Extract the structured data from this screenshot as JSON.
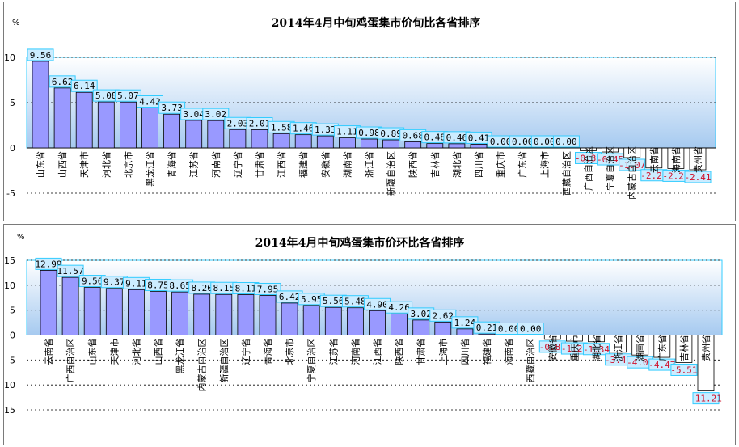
{
  "colors": {
    "bar_pos": "#9999ff",
    "bar_neg": "#ffffff",
    "label_box": "#ccecff",
    "label_border": "#33ccff",
    "neg_text": "#d0102a",
    "plot_gradient_top": "#ffffff",
    "plot_gradient_bottom": "#a6caf0"
  },
  "chart_data": [
    {
      "type": "bar",
      "title": "2014年4月中旬鸡蛋集市价旬比各省排序",
      "unit": "%",
      "ylim": [
        -5,
        10
      ],
      "yticks": [
        "10",
        "5",
        "0",
        "-5"
      ],
      "grid": true,
      "legend": "none",
      "categories": [
        "山东省",
        "山西省",
        "天津市",
        "河北省",
        "北京市",
        "黑龙江省",
        "青海省",
        "江苏省",
        "河南省",
        "辽宁省",
        "甘肃省",
        "江西省",
        "福建省",
        "安徽省",
        "湖南省",
        "浙江省",
        "新疆自治区",
        "陕西省",
        "吉林省",
        "湖北省",
        "四川省",
        "重庆市",
        "广东省",
        "上海市",
        "西藏自治区",
        "广西自治区",
        "宁夏自治区",
        "内蒙古自治区",
        "云南省",
        "海南省",
        "贵州省"
      ],
      "values": [
        9.56,
        6.62,
        6.14,
        5.08,
        5.07,
        4.42,
        3.73,
        3.04,
        3.02,
        2.03,
        2.01,
        1.58,
        1.46,
        1.33,
        1.11,
        0.98,
        0.89,
        0.68,
        0.48,
        0.46,
        0.41,
        0.0,
        0.0,
        0.0,
        0.0,
        -0.31,
        -0.45,
        -1.07,
        -2.21,
        -2.27,
        -2.41
      ],
      "labels": [
        "9.56",
        "6.62",
        "6.14",
        "5.08",
        "5.07",
        "4.42",
        "3.73",
        "3.04",
        "3.02",
        "2.03",
        "2.01",
        "1.58",
        "1.46",
        "1.33",
        "1.11",
        "0.98",
        "0.89",
        "0.68",
        "0.48",
        "0.46",
        "0.41",
        "0.00",
        "0.00",
        "0.00",
        "0.00",
        "-0.31",
        "-0.45",
        "-1.07",
        "-2.21",
        "-2.27",
        "-2.41"
      ]
    },
    {
      "type": "bar",
      "title": "2014年4月中旬鸡蛋集市价环比各省排序",
      "unit": "%",
      "ylim": [
        -15,
        15
      ],
      "yticks": [
        "15",
        "10",
        "5",
        "0",
        "-5",
        "-10",
        "-15"
      ],
      "grid": true,
      "legend": "none",
      "categories": [
        "云南省",
        "广西自治区",
        "山东省",
        "天津市",
        "河北省",
        "山西省",
        "黑龙江省",
        "内蒙古自治区",
        "新疆自治区",
        "辽宁省",
        "青海省",
        "北京市",
        "宁夏自治区",
        "江苏省",
        "河南省",
        "江西省",
        "陕西省",
        "甘肃省",
        "上海市",
        "四川省",
        "福建省",
        "海南省",
        "西藏自治区",
        "安徽省",
        "重庆市",
        "湖北省",
        "浙江省",
        "湖南省",
        "广东省",
        "吉林省",
        "贵州省"
      ],
      "values": [
        12.99,
        11.57,
        9.56,
        9.37,
        9.11,
        8.75,
        8.65,
        8.2,
        8.15,
        8.11,
        7.95,
        6.42,
        5.95,
        5.56,
        5.48,
        4.9,
        4.26,
        3.02,
        2.62,
        1.24,
        0.21,
        0.0,
        0.0,
        -0.87,
        -1.22,
        -1.34,
        -3.45,
        -4.0,
        -4.47,
        -5.51,
        -11.21
      ],
      "labels": [
        "12.99",
        "11.57",
        "9.56",
        "9.37",
        "9.11",
        "8.75",
        "8.65",
        "8.20",
        "8.15",
        "8.11",
        "7.95",
        "6.42",
        "5.95",
        "5.56",
        "5.48",
        "4.90",
        "4.26",
        "3.02",
        "2.62",
        "1.24",
        "0.21",
        "0.00",
        "0.00",
        "-0.87",
        "-1.22",
        "-1.34",
        "-3.45",
        "-4.00",
        "-4.47",
        "-5.51",
        "-11.21"
      ]
    }
  ]
}
